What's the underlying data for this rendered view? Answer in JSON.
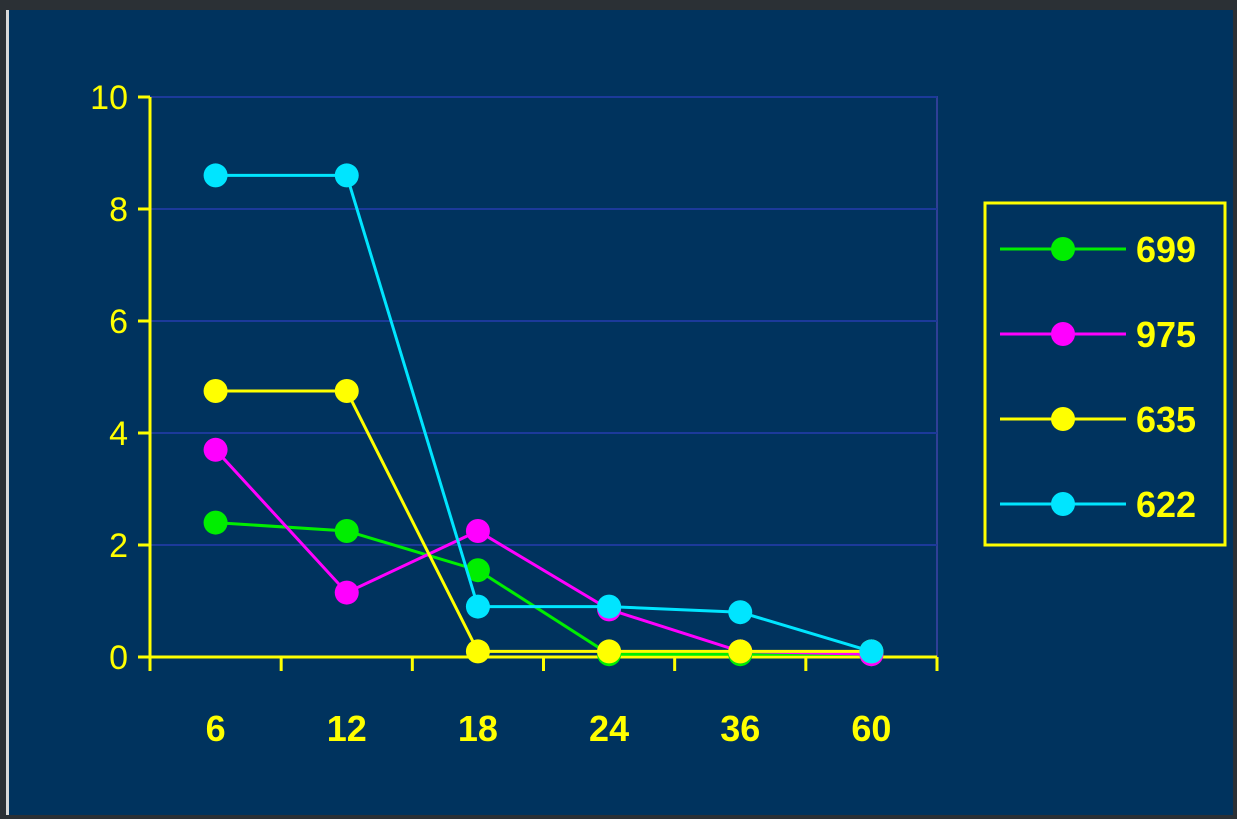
{
  "chart_data": {
    "type": "line",
    "categories": [
      "6",
      "12",
      "18",
      "24",
      "36",
      "60"
    ],
    "ylim": [
      0,
      10
    ],
    "yticks": [
      0,
      2,
      4,
      6,
      8,
      10
    ],
    "grid": true,
    "legend_position": "right",
    "series": [
      {
        "name": "699",
        "color": "#00ee00",
        "values": [
          2.4,
          2.25,
          1.55,
          0.05,
          0.05,
          0.05
        ]
      },
      {
        "name": "975",
        "color": "#ff00ff",
        "values": [
          3.7,
          1.15,
          2.25,
          0.85,
          0.1,
          0.05
        ]
      },
      {
        "name": "635",
        "color": "#ffff00",
        "values": [
          4.75,
          4.75,
          0.1,
          0.1,
          0.1,
          0.1
        ]
      },
      {
        "name": "622",
        "color": "#00e5ff",
        "values": [
          8.6,
          8.6,
          0.9,
          0.9,
          0.8,
          0.1
        ]
      }
    ]
  },
  "colors": {
    "background": "#00335e",
    "axis": "#ffff00",
    "grid": "#1c3a9a",
    "plot_border": "#2f3f96",
    "text": "#ffff00"
  }
}
